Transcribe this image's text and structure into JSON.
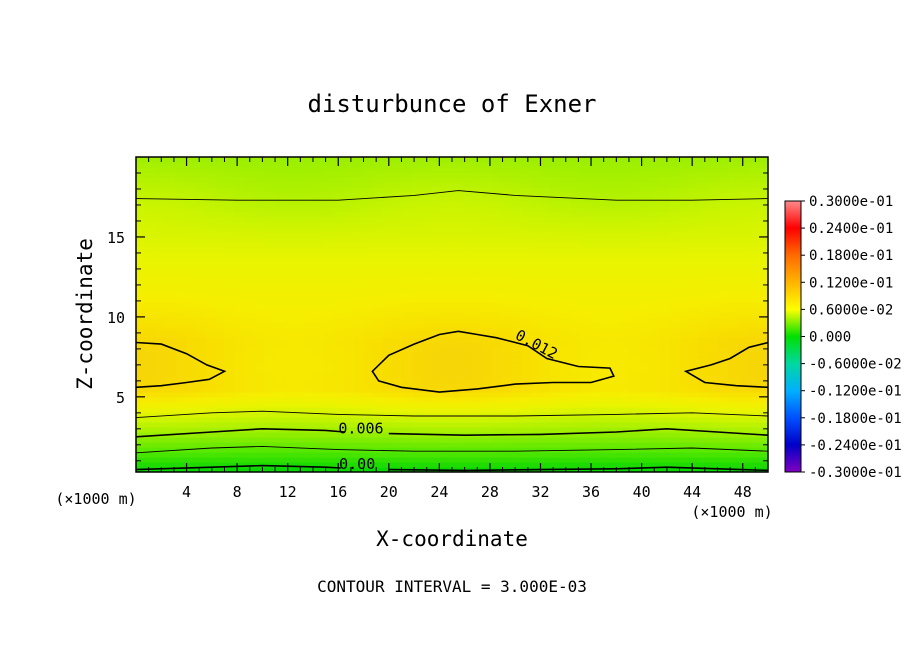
{
  "chart_data": {
    "type": "heatmap",
    "title": "disturbunce of Exner",
    "xlabel": "X-coordinate",
    "ylabel": "Z-coordinate",
    "x_unit_left": "(×1000 m)",
    "x_unit_right": "(×1000 m)",
    "xlim": [
      0,
      50
    ],
    "ylim": [
      0.3,
      20
    ],
    "x_ticks": [
      4,
      8,
      12,
      16,
      20,
      24,
      28,
      32,
      36,
      40,
      44,
      48
    ],
    "x_tick_labels": [
      "4",
      "8",
      "12",
      "16",
      "20",
      "24",
      "28",
      "32",
      "36",
      "40",
      "44",
      "48"
    ],
    "y_ticks": [
      5,
      10,
      15
    ],
    "y_tick_labels": [
      "5",
      "10",
      "15"
    ],
    "contour_interval_text": "CONTOUR INTERVAL = 3.000E-03",
    "contour_labels": [
      {
        "text": "0.012",
        "x": 31.5,
        "y": 8.0
      },
      {
        "text": "0.006",
        "x": 17.8,
        "y": 2.7
      },
      {
        "text": "0.00",
        "x": 17.5,
        "y": 0.5
      }
    ],
    "colorbar": {
      "min": -0.03,
      "max": 0.03,
      "tick_labels": [
        "0.3000e-01",
        "0.2400e-01",
        "0.1800e-01",
        "0.1200e-01",
        "0.6000e-02",
        "0.000",
        "-0.6000e-02",
        "-0.1200e-01",
        "-0.1800e-01",
        "-0.2400e-01",
        "-0.3000e-01"
      ],
      "colors": [
        "#ff8a8a",
        "#ff0000",
        "#ff6a00",
        "#ffb400",
        "#ffff00",
        "#00e000",
        "#00d8a0",
        "#00b0ff",
        "#0050ff",
        "#0000c8",
        "#8000c0"
      ]
    },
    "field_description_values": {
      "bands_z": [
        0.3,
        0.8,
        1.4,
        2.0,
        2.7,
        3.5,
        4.5,
        5.5,
        8.5,
        10.5,
        13.0,
        15.5,
        17.3,
        20.0
      ],
      "bands_value": [
        0.0,
        0.002,
        0.004,
        0.006,
        0.007,
        0.009,
        0.0105,
        0.012,
        0.0105,
        0.0095,
        0.0085,
        0.0075,
        0.0065,
        0.006
      ]
    }
  }
}
